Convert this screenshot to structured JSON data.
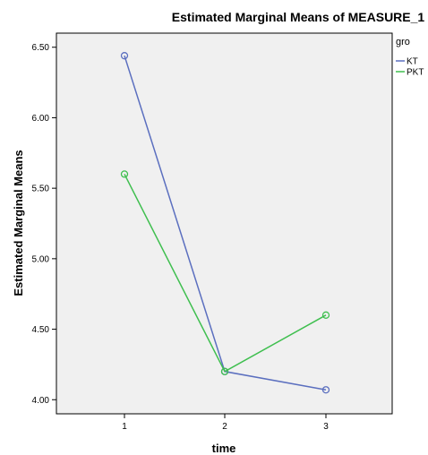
{
  "chart_data": {
    "type": "line",
    "title": "Estimated Marginal Means of MEASURE_1",
    "xlabel": "time",
    "ylabel": "Estimated Marginal Means",
    "x": [
      "1",
      "2",
      "3"
    ],
    "ylim": [
      3.9,
      6.6
    ],
    "yticks": [
      "4.00",
      "4.50",
      "5.00",
      "5.50",
      "6.00",
      "6.50"
    ],
    "ytick_values": [
      4.0,
      4.5,
      5.0,
      5.5,
      6.0,
      6.5
    ],
    "grid": false,
    "legend": {
      "title": "gro",
      "placement": "right"
    },
    "series": [
      {
        "name": "KT",
        "color": "#5b6fbf",
        "values": [
          6.44,
          4.2,
          4.07
        ]
      },
      {
        "name": "PKT",
        "color": "#3fbf4f",
        "values": [
          5.6,
          4.2,
          4.6
        ]
      }
    ]
  }
}
